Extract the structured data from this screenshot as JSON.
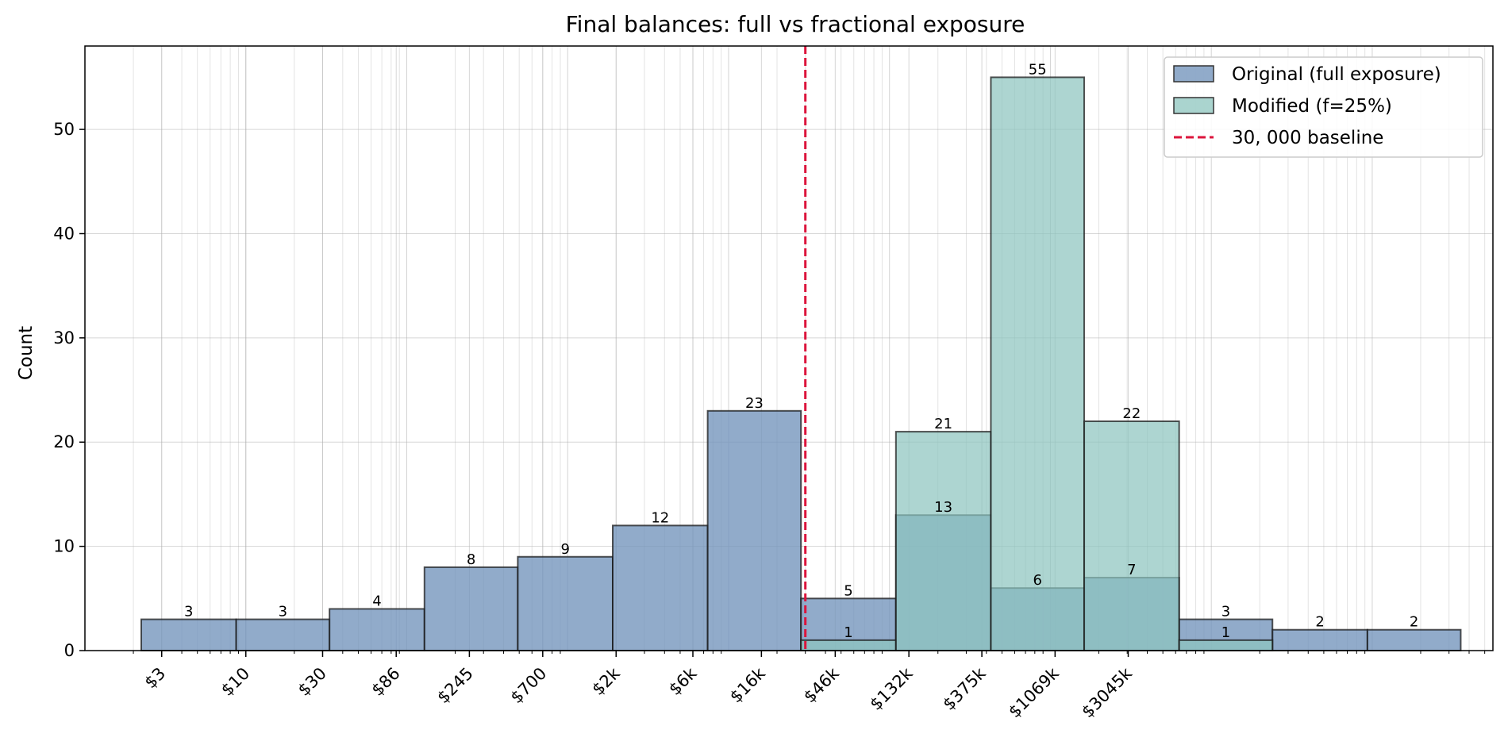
{
  "chart_data": {
    "type": "bar",
    "title": "Final balances: full vs fractional exposure",
    "xlabel": "",
    "ylabel": "Count",
    "x_scale": "log",
    "ylim": [
      0,
      58
    ],
    "y_ticks": [
      0,
      10,
      20,
      30,
      40,
      50
    ],
    "grid": true,
    "legend_position": "top-right",
    "bin_edges_log10": [
      0.35,
      0.94,
      1.52,
      2.11,
      2.69,
      3.28,
      3.87,
      4.45,
      5.04,
      5.63,
      6.21,
      6.8,
      7.38,
      7.97,
      8.55
    ],
    "x_tick_values": [
      3,
      10,
      30,
      86,
      245,
      700,
      2000,
      6000,
      16000,
      46000,
      132000,
      375000,
      1069000,
      3045000
    ],
    "x_tick_labels": [
      "$3",
      "$10",
      "$30",
      "$86",
      "$245",
      "$700",
      "$2k",
      "$6k",
      "$16k",
      "$46k",
      "$132k",
      "$375k",
      "$1069k",
      "$3045k"
    ],
    "series": [
      {
        "name": "Original (full exposure)",
        "color": "#7293bb",
        "values": [
          3,
          3,
          4,
          8,
          9,
          12,
          23,
          5,
          13,
          6,
          7,
          3,
          2,
          2
        ]
      },
      {
        "name": "Modified (f=25%)",
        "color": "#8dc5bf",
        "values": [
          0,
          0,
          0,
          0,
          0,
          0,
          0,
          1,
          21,
          55,
          22,
          1,
          0,
          0
        ]
      }
    ],
    "reference_line": {
      "name": "30, 000 baseline",
      "value": 30000,
      "color": "#dc143c",
      "style": "dashed"
    }
  }
}
